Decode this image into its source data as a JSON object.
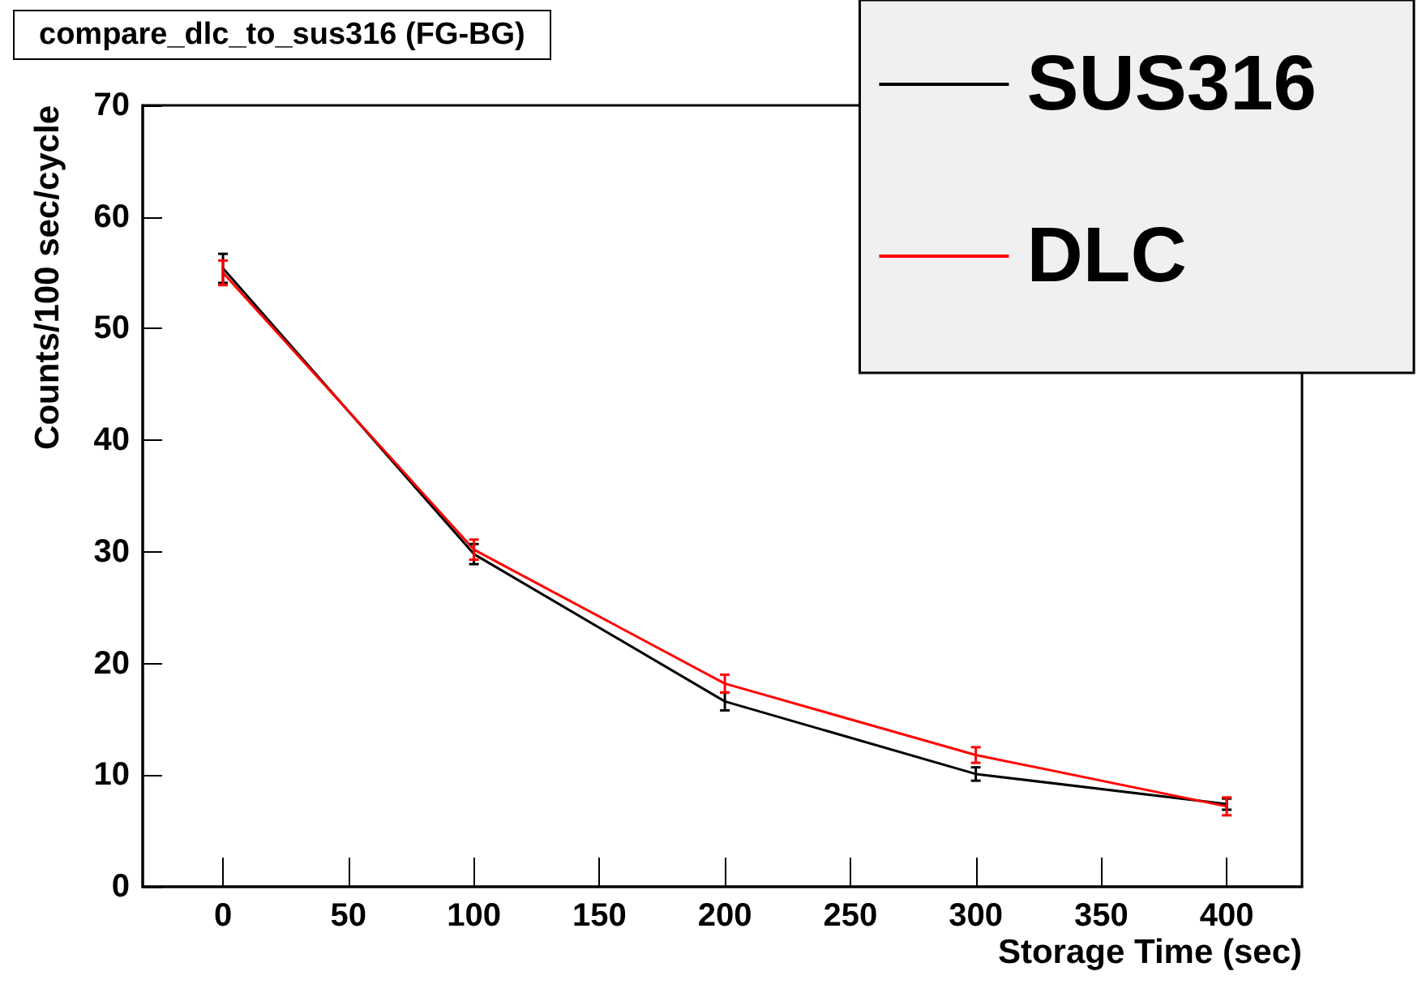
{
  "chart_data": {
    "type": "line",
    "title": "compare_dlc_to_sus316 (FG-BG)",
    "xlabel": "Storage Time (sec)",
    "ylabel": "Counts/100 sec/cycle",
    "x": [
      0,
      100,
      200,
      300,
      400
    ],
    "series": [
      {
        "name": "SUS316",
        "color": "#000000",
        "values": [
          55.4,
          29.8,
          16.6,
          10.1,
          7.4
        ],
        "errors": [
          1.3,
          0.9,
          0.8,
          0.6,
          0.5
        ]
      },
      {
        "name": "DLC",
        "color": "#ff0000",
        "values": [
          55.0,
          30.2,
          18.2,
          11.8,
          7.2
        ],
        "errors": [
          1.1,
          0.9,
          0.8,
          0.7,
          0.8
        ]
      }
    ],
    "xlim": [
      -32,
      430
    ],
    "xticks": [
      0,
      50,
      100,
      150,
      200,
      250,
      300,
      350,
      400
    ],
    "ylim": [
      0,
      70
    ],
    "yticks": [
      0,
      10,
      20,
      30,
      40,
      50,
      60,
      70
    ],
    "grid": false,
    "legend": "top right",
    "marker": "none",
    "line_style": "solid"
  }
}
